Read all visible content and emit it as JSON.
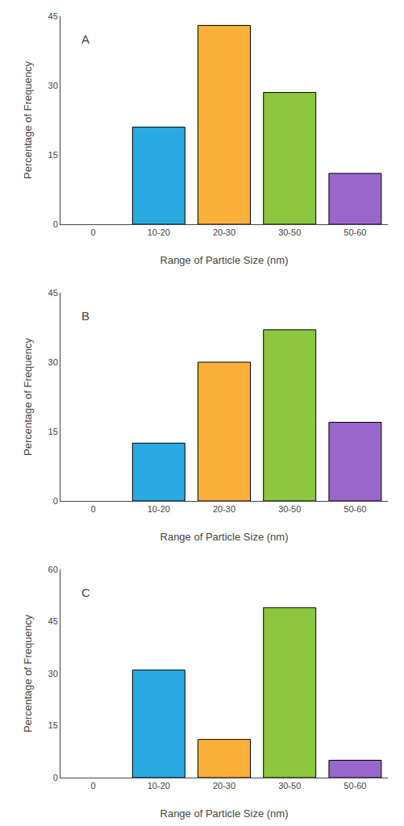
{
  "chart_data": [
    {
      "type": "bar",
      "annotations": [
        "A"
      ],
      "x_label": "Range of Particle Size (nm)",
      "y_label": "Percentage of Frequency",
      "categories": [
        "0",
        "10-20",
        "20-30",
        "30-50",
        "50-60"
      ],
      "values": [
        null,
        21,
        43,
        28.5,
        11
      ],
      "colors": [
        null,
        "#29ABE2",
        "#FBB03B",
        "#8DC63F",
        "#9966CC"
      ],
      "ylim": [
        0,
        45
      ],
      "yticks": [
        0,
        15,
        30,
        45
      ],
      "grid": false
    },
    {
      "type": "bar",
      "annotations": [
        "B"
      ],
      "x_label": "Range of Particle Size (nm)",
      "y_label": "Percentage of Frequency",
      "categories": [
        "0",
        "10-20",
        "20-30",
        "30-50",
        "50-60"
      ],
      "values": [
        null,
        12.5,
        30,
        37,
        17
      ],
      "colors": [
        null,
        "#29ABE2",
        "#FBB03B",
        "#8DC63F",
        "#9966CC"
      ],
      "ylim": [
        0,
        45
      ],
      "yticks": [
        0,
        15,
        30,
        45
      ],
      "grid": false
    },
    {
      "type": "bar",
      "annotations": [
        "C"
      ],
      "x_label": "Range of Particle Size (nm)",
      "y_label": "Percentage of Frequency",
      "categories": [
        "0",
        "10-20",
        "20-30",
        "30-50",
        "50-60"
      ],
      "values": [
        null,
        31,
        11,
        49,
        5
      ],
      "colors": [
        null,
        "#29ABE2",
        "#FBB03B",
        "#8DC63F",
        "#9966CC"
      ],
      "ylim": [
        0,
        60
      ],
      "yticks": [
        0,
        15,
        30,
        45,
        60
      ],
      "grid": false
    }
  ]
}
